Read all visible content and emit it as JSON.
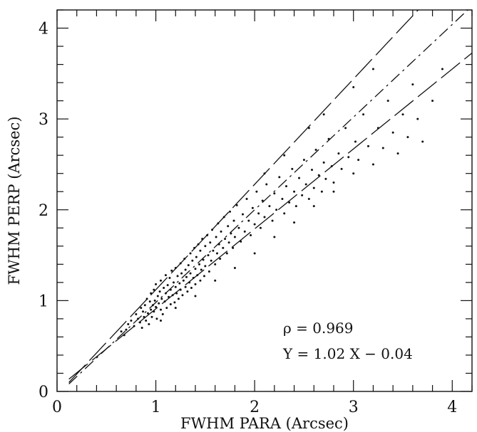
{
  "chart_data": {
    "type": "scatter",
    "title": "",
    "xlabel": "FWHM PARA (Arcsec)",
    "ylabel": "FWHM PERP (Arcsec)",
    "xlim": [
      0,
      4.2
    ],
    "ylim": [
      0,
      4.2
    ],
    "x_ticks": [
      0,
      1,
      2,
      3,
      4
    ],
    "y_ticks": [
      0,
      1,
      2,
      3,
      4
    ],
    "x_tick_labels": [
      "0",
      "1",
      "2",
      "3",
      "4"
    ],
    "y_tick_labels": [
      "0",
      "1",
      "2",
      "3",
      "4"
    ],
    "minor_tick_step": 0.2,
    "grid": false,
    "annotations": {
      "rho": "ρ  =  0.969",
      "fit": "Y  =  1.02 X  −  0.04"
    },
    "lines": [
      {
        "style": "long-dash",
        "slope": 1.16,
        "intercept": -0.04,
        "x_range": [
          0.12,
          4.0
        ]
      },
      {
        "style": "dash-dot",
        "slope": 1.02,
        "intercept": -0.04,
        "x_range": [
          0.12,
          4.2
        ]
      },
      {
        "style": "long-dash",
        "slope": 0.88,
        "intercept": 0.03,
        "x_range": [
          0.12,
          4.2
        ]
      }
    ],
    "points": [
      [
        0.75,
        0.78
      ],
      [
        0.78,
        0.72
      ],
      [
        0.8,
        0.85
      ],
      [
        0.82,
        0.8
      ],
      [
        0.84,
        0.76
      ],
      [
        0.85,
        0.92
      ],
      [
        0.86,
        0.7
      ],
      [
        0.87,
        0.88
      ],
      [
        0.88,
        0.82
      ],
      [
        0.89,
        0.95
      ],
      [
        0.9,
        0.78
      ],
      [
        0.91,
        1.02
      ],
      [
        0.92,
        0.86
      ],
      [
        0.93,
        0.74
      ],
      [
        0.94,
        0.99
      ],
      [
        0.95,
        0.9
      ],
      [
        0.95,
        1.08
      ],
      [
        0.96,
        0.82
      ],
      [
        0.97,
        0.95
      ],
      [
        0.98,
        1.12
      ],
      [
        0.98,
        0.88
      ],
      [
        0.99,
        1.0
      ],
      [
        1.0,
        0.93
      ],
      [
        1.0,
        1.18
      ],
      [
        1.01,
        0.8
      ],
      [
        1.02,
        1.05
      ],
      [
        1.03,
        0.97
      ],
      [
        1.04,
        1.1
      ],
      [
        1.05,
        0.9
      ],
      [
        1.05,
        1.22
      ],
      [
        1.06,
        1.02
      ],
      [
        1.07,
        0.85
      ],
      [
        1.08,
        1.14
      ],
      [
        1.09,
        0.99
      ],
      [
        1.1,
        1.08
      ],
      [
        1.1,
        1.28
      ],
      [
        1.11,
        0.92
      ],
      [
        1.12,
        1.17
      ],
      [
        1.13,
        1.04
      ],
      [
        1.14,
        1.25
      ],
      [
        1.15,
        0.96
      ],
      [
        1.15,
        1.12
      ],
      [
        1.16,
        1.33
      ],
      [
        1.17,
        1.06
      ],
      [
        1.18,
        1.2
      ],
      [
        1.19,
        0.98
      ],
      [
        1.2,
        1.15
      ],
      [
        1.2,
        1.36
      ],
      [
        1.21,
        1.08
      ],
      [
        1.22,
        1.27
      ],
      [
        1.23,
        1.02
      ],
      [
        1.24,
        1.19
      ],
      [
        1.25,
        1.41
      ],
      [
        1.25,
        1.12
      ],
      [
        1.26,
        1.3
      ],
      [
        1.27,
        1.06
      ],
      [
        1.28,
        1.22
      ],
      [
        1.29,
        1.46
      ],
      [
        1.3,
        1.15
      ],
      [
        1.3,
        1.34
      ],
      [
        1.31,
        1.26
      ],
      [
        1.32,
        1.1
      ],
      [
        1.33,
        1.39
      ],
      [
        1.34,
        1.2
      ],
      [
        1.35,
        1.52
      ],
      [
        1.35,
        1.3
      ],
      [
        1.36,
        1.14
      ],
      [
        1.37,
        1.44
      ],
      [
        1.38,
        1.25
      ],
      [
        1.39,
        1.58
      ],
      [
        1.4,
        1.35
      ],
      [
        1.4,
        1.18
      ],
      [
        1.41,
        1.48
      ],
      [
        1.42,
        1.28
      ],
      [
        1.43,
        1.62
      ],
      [
        1.44,
        1.4
      ],
      [
        1.45,
        1.22
      ],
      [
        1.45,
        1.55
      ],
      [
        1.46,
        1.34
      ],
      [
        1.47,
        1.68
      ],
      [
        1.48,
        1.45
      ],
      [
        1.49,
        1.27
      ],
      [
        1.5,
        1.6
      ],
      [
        1.5,
        1.38
      ],
      [
        1.52,
        1.72
      ],
      [
        1.53,
        1.5
      ],
      [
        1.54,
        1.32
      ],
      [
        1.55,
        1.64
      ],
      [
        1.56,
        1.44
      ],
      [
        1.57,
        1.78
      ],
      [
        1.58,
        1.55
      ],
      [
        1.6,
        1.4
      ],
      [
        1.61,
        1.7
      ],
      [
        1.62,
        1.52
      ],
      [
        1.63,
        1.85
      ],
      [
        1.64,
        1.62
      ],
      [
        1.65,
        1.46
      ],
      [
        1.66,
        1.76
      ],
      [
        1.68,
        1.58
      ],
      [
        1.69,
        1.92
      ],
      [
        1.7,
        1.68
      ],
      [
        1.72,
        1.52
      ],
      [
        1.73,
        1.82
      ],
      [
        1.74,
        1.64
      ],
      [
        1.75,
        1.98
      ],
      [
        1.76,
        1.74
      ],
      [
        1.78,
        1.58
      ],
      [
        1.79,
        1.88
      ],
      [
        1.8,
        1.7
      ],
      [
        1.82,
        2.05
      ],
      [
        1.84,
        1.8
      ],
      [
        1.86,
        1.65
      ],
      [
        1.88,
        1.95
      ],
      [
        1.9,
        1.76
      ],
      [
        1.92,
        2.12
      ],
      [
        1.94,
        1.88
      ],
      [
        1.96,
        1.72
      ],
      [
        1.98,
        2.02
      ],
      [
        2.0,
        1.84
      ],
      [
        2.02,
        2.2
      ],
      [
        2.04,
        1.96
      ],
      [
        2.06,
        1.8
      ],
      [
        2.08,
        2.1
      ],
      [
        2.1,
        1.92
      ],
      [
        2.12,
        2.28
      ],
      [
        2.15,
        2.04
      ],
      [
        2.18,
        1.88
      ],
      [
        2.2,
        2.18
      ],
      [
        2.22,
        2.0
      ],
      [
        2.25,
        2.36
      ],
      [
        2.28,
        2.12
      ],
      [
        2.3,
        1.96
      ],
      [
        2.32,
        2.26
      ],
      [
        2.35,
        2.08
      ],
      [
        2.38,
        2.45
      ],
      [
        2.4,
        2.2
      ],
      [
        2.42,
        2.04
      ],
      [
        2.45,
        2.35
      ],
      [
        2.48,
        2.16
      ],
      [
        2.5,
        2.55
      ],
      [
        2.52,
        2.28
      ],
      [
        2.55,
        2.12
      ],
      [
        2.58,
        2.44
      ],
      [
        2.6,
        2.24
      ],
      [
        2.62,
        2.66
      ],
      [
        2.65,
        2.38
      ],
      [
        2.68,
        2.2
      ],
      [
        2.7,
        2.52
      ],
      [
        2.72,
        2.34
      ],
      [
        2.75,
        2.78
      ],
      [
        2.78,
        2.48
      ],
      [
        2.8,
        2.3
      ],
      [
        2.85,
        2.62
      ],
      [
        2.88,
        2.45
      ],
      [
        2.92,
        2.9
      ],
      [
        2.95,
        2.58
      ],
      [
        3.0,
        2.4
      ],
      [
        3.02,
        2.75
      ],
      [
        3.05,
        2.55
      ],
      [
        3.1,
        3.05
      ],
      [
        3.15,
        2.7
      ],
      [
        3.2,
        2.5
      ],
      [
        3.25,
        2.9
      ],
      [
        3.3,
        2.68
      ],
      [
        3.35,
        3.2
      ],
      [
        3.4,
        2.85
      ],
      [
        3.45,
        2.62
      ],
      [
        3.5,
        3.05
      ],
      [
        3.55,
        2.8
      ],
      [
        3.6,
        3.38
      ],
      [
        3.65,
        3.0
      ],
      [
        3.7,
        2.75
      ],
      [
        3.8,
        3.2
      ],
      [
        3.9,
        3.55
      ],
      [
        0.7,
        0.68
      ],
      [
        0.72,
        0.74
      ],
      [
        0.65,
        0.66
      ],
      [
        0.68,
        0.62
      ],
      [
        2.1,
        2.4
      ],
      [
        2.3,
        2.6
      ],
      [
        2.55,
        2.9
      ],
      [
        2.7,
        3.05
      ],
      [
        3.0,
        3.35
      ],
      [
        3.2,
        3.55
      ],
      [
        1.05,
        0.78
      ],
      [
        1.2,
        0.92
      ],
      [
        1.4,
        1.05
      ],
      [
        1.6,
        1.22
      ],
      [
        1.8,
        1.36
      ],
      [
        2.0,
        1.52
      ],
      [
        2.2,
        1.7
      ],
      [
        2.4,
        1.86
      ],
      [
        2.6,
        2.04
      ],
      [
        2.8,
        2.2
      ]
    ]
  }
}
